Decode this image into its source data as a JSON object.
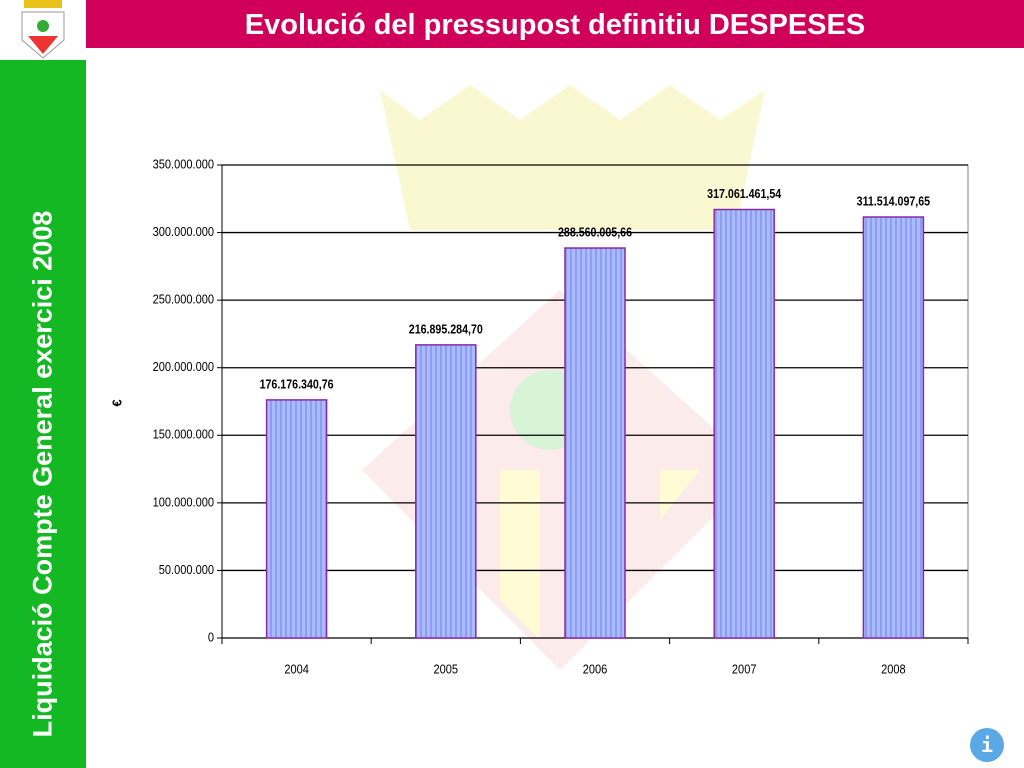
{
  "slide": {
    "sidebar": "Liquidació Compte General exercici 2008",
    "info_button": "i"
  },
  "chart_data": {
    "type": "bar",
    "title": "Evolució del pressupost definitiu DESPESES",
    "y_label": "€",
    "categories": [
      "2004",
      "2005",
      "2006",
      "2007",
      "2008"
    ],
    "values": [
      176176340.76,
      216895284.7,
      288560005.66,
      317061461.54,
      311514097.65
    ],
    "value_labels": [
      "176.176.340,76",
      "216.895.284,70",
      "288.560.005,66",
      "317.061.461,54",
      "311.514.097,65"
    ],
    "color": "#a3b4ff",
    "ylim": [
      0,
      350000000
    ],
    "yticks": [
      0,
      {
        "value": 50000000,
        "label": "50.000.000"
      },
      {
        "value": 100000000,
        "label": "100.000.000"
      },
      {
        "value": 150000000,
        "label": "150.000.000"
      },
      {
        "value": 200000000,
        "label": "200.000.000"
      },
      {
        "value": 250000000,
        "label": "250.000.000"
      },
      {
        "value": 300000000,
        "label": "300.000.000"
      },
      {
        "value": 350000000,
        "label": "350.000.000"
      }
    ],
    "grid": true
  }
}
